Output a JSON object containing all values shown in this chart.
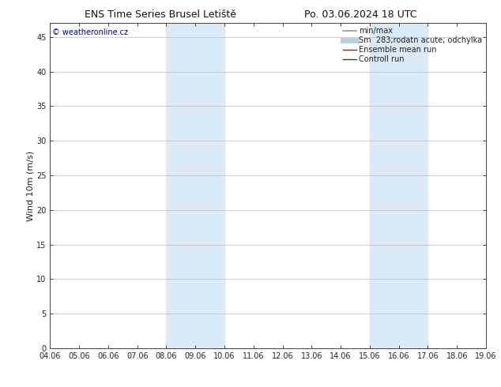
{
  "title_left": "ENS Time Series Brusel Letiště",
  "title_right": "Po. 03.06.2024 18 UTC",
  "ylabel": "Wind 10m (m/s)",
  "xlabel_ticks": [
    "04.06",
    "05.06",
    "06.06",
    "07.06",
    "08.06",
    "09.06",
    "10.06",
    "11.06",
    "12.06",
    "13.06",
    "14.06",
    "15.06",
    "16.06",
    "17.06",
    "18.06",
    "19.06"
  ],
  "xtick_positions": [
    4.06,
    5.06,
    6.06,
    7.06,
    8.06,
    9.06,
    10.06,
    11.06,
    12.06,
    13.06,
    14.06,
    15.06,
    16.06,
    17.06,
    18.06,
    19.06
  ],
  "yticks": [
    0,
    5,
    10,
    15,
    20,
    25,
    30,
    35,
    40,
    45
  ],
  "ymax": 47,
  "ymin": 0,
  "shaded_regions": [
    {
      "x_start": 8.06,
      "x_end": 9.06,
      "color": "#daeaf7"
    },
    {
      "x_start": 9.06,
      "x_end": 10.06,
      "color": "#daeaf7"
    },
    {
      "x_start": 15.06,
      "x_end": 16.06,
      "color": "#daeaf7"
    },
    {
      "x_start": 16.06,
      "x_end": 17.06,
      "color": "#daeaf7"
    }
  ],
  "watermark_text": "© weatheronline.cz",
  "watermark_color": "#0000bb",
  "bg_color": "#ffffff",
  "plot_bg_color": "#ffffff",
  "grid_color": "#bbbbbb",
  "legend_items": [
    {
      "label": "min/max",
      "color": "#999999",
      "lw": 1.2,
      "style": "solid"
    },
    {
      "label": "Sm  283;rodatn acute; odchylka",
      "color": "#bbccdd",
      "lw": 5,
      "style": "solid"
    },
    {
      "label": "Ensemble mean run",
      "color": "#dd0000",
      "lw": 1.0,
      "style": "solid"
    },
    {
      "label": "Controll run",
      "color": "#006600",
      "lw": 1.0,
      "style": "solid"
    }
  ],
  "spine_color": "#444444",
  "tick_color": "#222222",
  "title_fontsize": 9,
  "axis_label_fontsize": 8,
  "tick_fontsize": 7,
  "legend_fontsize": 7,
  "watermark_fontsize": 7,
  "xmin": 4.06,
  "xmax": 19.06
}
